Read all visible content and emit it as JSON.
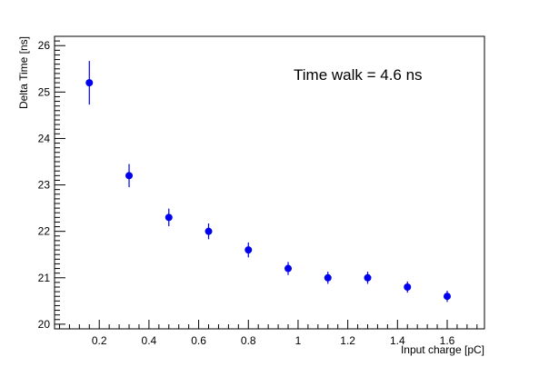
{
  "chart_data": {
    "type": "scatter",
    "title": "",
    "xlabel": "Input charge [pC]",
    "ylabel": "Delta Time [ns]",
    "xlim": [
      0.02,
      1.75
    ],
    "ylim": [
      19.9,
      26.2
    ],
    "grid": false,
    "legend": "none",
    "x_ticks": [
      0.2,
      0.4,
      0.6,
      0.8,
      1,
      1.2,
      1.4,
      1.6
    ],
    "x_tick_labels": [
      "0.2",
      "0.4",
      "0.6",
      "0.8",
      "1",
      "1.2",
      "1.4",
      "1.6"
    ],
    "y_ticks": [
      20,
      21,
      22,
      23,
      24,
      25,
      26
    ],
    "y_tick_labels": [
      "20",
      "21",
      "22",
      "23",
      "24",
      "25",
      "26"
    ],
    "annotation": "Time walk =  4.6 ns",
    "marker_color": "#0000ee",
    "series": [
      {
        "x": [
          0.16,
          0.32,
          0.48,
          0.64,
          0.8,
          0.96,
          1.12,
          1.28,
          1.44,
          1.6
        ],
        "y": [
          25.2,
          23.2,
          22.3,
          22.0,
          21.6,
          21.2,
          21.0,
          21.0,
          20.8,
          20.6
        ],
        "err": [
          0.47,
          0.25,
          0.19,
          0.17,
          0.16,
          0.14,
          0.13,
          0.13,
          0.12,
          0.12
        ]
      }
    ]
  }
}
